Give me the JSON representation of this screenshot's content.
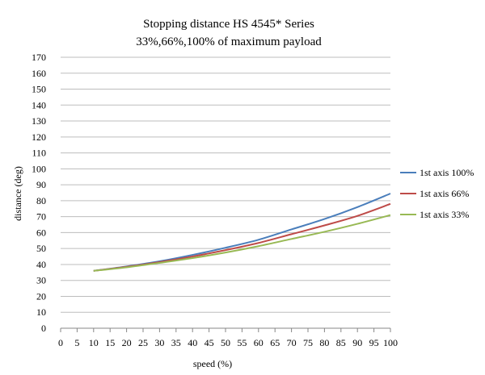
{
  "chart_data": {
    "type": "line",
    "title": "Stopping distance HS 4545* Series",
    "subtitle": "33%,66%,100% of maximum payload",
    "xlabel": "speed  (%)",
    "ylabel": "distance (deg)",
    "xlim": [
      0,
      100
    ],
    "ylim": [
      0,
      170
    ],
    "xticks": [
      0,
      5,
      10,
      15,
      20,
      25,
      30,
      35,
      40,
      45,
      50,
      55,
      60,
      65,
      70,
      75,
      80,
      85,
      90,
      95,
      100
    ],
    "yticks": [
      0,
      10,
      20,
      30,
      40,
      50,
      60,
      70,
      80,
      90,
      100,
      110,
      120,
      130,
      140,
      150,
      160,
      170
    ],
    "grid": "horizontal",
    "legend_position": "right",
    "x": [
      10,
      20,
      30,
      40,
      50,
      60,
      70,
      80,
      90,
      100
    ],
    "series": [
      {
        "name": "1st axis 100%",
        "color": "#4a7ebb",
        "values": [
          36,
          38.8,
          42,
          46,
          50.5,
          55.5,
          62,
          68.5,
          76,
          84.5
        ]
      },
      {
        "name": "1st axis 66%",
        "color": "#be4b48",
        "values": [
          36,
          38.5,
          41.5,
          45,
          49,
          53.5,
          59,
          64.5,
          70.5,
          78
        ]
      },
      {
        "name": "1st axis 33%",
        "color": "#98b954",
        "values": [
          36,
          38.2,
          41,
          44,
          47.5,
          51.5,
          56,
          60.5,
          65.5,
          71
        ]
      }
    ]
  }
}
